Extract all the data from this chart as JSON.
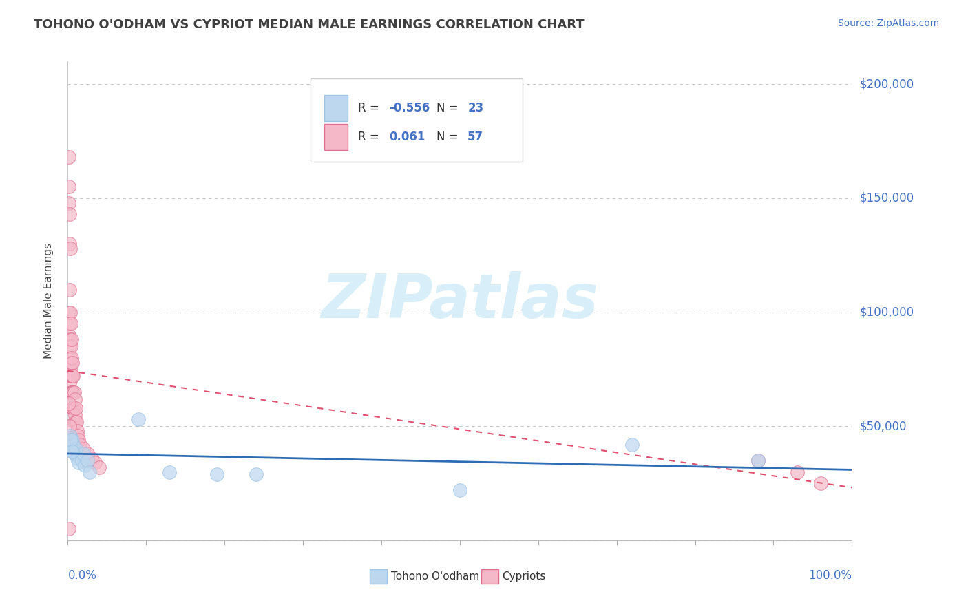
{
  "title": "TOHONO O'ODHAM VS CYPRIOT MEDIAN MALE EARNINGS CORRELATION CHART",
  "source_text": "Source: ZipAtlas.com",
  "ylabel": "Median Male Earnings",
  "color_blue_fill": "#BDD7EE",
  "color_blue_edge": "#9DC3E6",
  "color_pink_fill": "#F4B8C8",
  "color_pink_edge": "#E07090",
  "color_blue_line": "#2E6DB4",
  "color_pink_line": "#E05070",
  "color_diag": "#E0A0A8",
  "color_text_axis": "#4472C4",
  "color_grid": "#C8C8C8",
  "color_title": "#404040",
  "watermark_color": "#D8EEF8",
  "ylim": [
    0,
    210000
  ],
  "xlim": [
    0.0,
    1.0
  ],
  "tohono_x": [
    0.003,
    0.005,
    0.006,
    0.007,
    0.008,
    0.009,
    0.01,
    0.012,
    0.014,
    0.018,
    0.02,
    0.022,
    0.025,
    0.028,
    0.09,
    0.13,
    0.19,
    0.24,
    0.5,
    0.72,
    0.88,
    0.004,
    0.006
  ],
  "tohono_y": [
    46000,
    41000,
    44000,
    42000,
    38000,
    39000,
    40000,
    36000,
    34000,
    35000,
    38000,
    33000,
    35000,
    30000,
    53000,
    30000,
    29000,
    29000,
    22000,
    42000,
    35000,
    44000,
    39000
  ],
  "cypriot_x": [
    0.001,
    0.001,
    0.001,
    0.001,
    0.001,
    0.002,
    0.002,
    0.002,
    0.002,
    0.002,
    0.002,
    0.003,
    0.003,
    0.003,
    0.003,
    0.003,
    0.003,
    0.004,
    0.004,
    0.004,
    0.004,
    0.004,
    0.005,
    0.005,
    0.005,
    0.005,
    0.006,
    0.006,
    0.006,
    0.006,
    0.007,
    0.007,
    0.007,
    0.008,
    0.008,
    0.008,
    0.009,
    0.009,
    0.01,
    0.01,
    0.011,
    0.012,
    0.013,
    0.014,
    0.015,
    0.02,
    0.025,
    0.03,
    0.035,
    0.04,
    0.001,
    0.002,
    0.003,
    0.001,
    0.88,
    0.93,
    0.96
  ],
  "cypriot_y": [
    168000,
    155000,
    148000,
    100000,
    90000,
    143000,
    130000,
    110000,
    95000,
    85000,
    78000,
    128000,
    100000,
    88000,
    80000,
    75000,
    70000,
    95000,
    85000,
    78000,
    72000,
    65000,
    88000,
    80000,
    72000,
    65000,
    78000,
    72000,
    65000,
    58000,
    72000,
    65000,
    58000,
    65000,
    58000,
    52000,
    62000,
    55000,
    58000,
    52000,
    52000,
    48000,
    46000,
    44000,
    42000,
    40000,
    38000,
    36000,
    34000,
    32000,
    60000,
    50000,
    45000,
    5000,
    35000,
    30000,
    25000
  ]
}
